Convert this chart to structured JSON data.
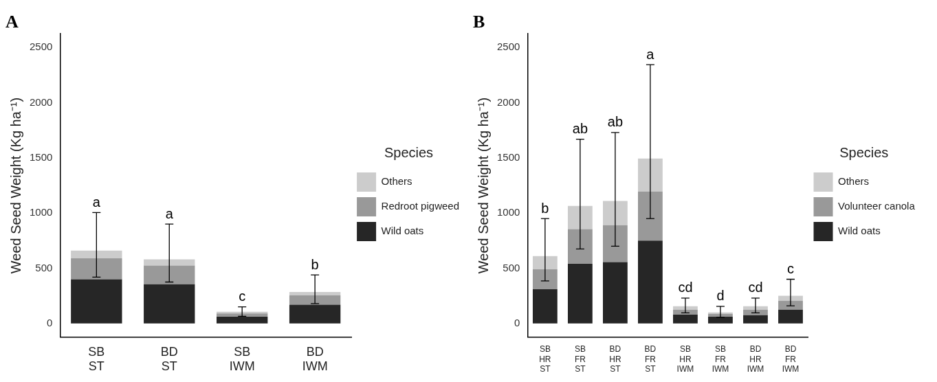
{
  "chart_data": [
    {
      "type": "bar",
      "title": "A",
      "ylabel": "Weed Seed Weight (Kg ha⁻¹)",
      "legend_title": "Species",
      "legend": "right",
      "stacked": true,
      "grid": false,
      "categories": [
        "SB ST",
        "BD ST",
        "SB IWM",
        "BD IWM"
      ],
      "ylim": [
        -125,
        2625
      ],
      "yticks": [
        0,
        500,
        1000,
        1500,
        2000,
        2500
      ],
      "series": [
        {
          "name": "Wild oats",
          "color": "#262626",
          "values": [
            400,
            355,
            60,
            170
          ]
        },
        {
          "name": "Redroot pigweed",
          "color": "#999999",
          "values": [
            190,
            170,
            30,
            85
          ]
        },
        {
          "name": "Others",
          "color": "#cccccc",
          "values": [
            70,
            55,
            15,
            30
          ],
          "errors": [
            [
              420,
              1005
            ],
            [
              375,
              900
            ],
            [
              65,
              150
            ],
            [
              180,
              440
            ]
          ]
        }
      ],
      "annotations": [
        {
          "text": "a",
          "x": "SB ST",
          "y": 1005
        },
        {
          "text": "a",
          "x": "BD ST",
          "y": 900
        },
        {
          "text": "c",
          "x": "SB IWM",
          "y": 150
        },
        {
          "text": "b",
          "x": "BD IWM",
          "y": 440
        }
      ]
    },
    {
      "type": "bar",
      "title": "B",
      "ylabel": "Weed Seed Weight (Kg ha⁻¹)",
      "legend_title": "Species",
      "legend": "right",
      "stacked": true,
      "grid": false,
      "categories": [
        "SB HR ST",
        "SB FR ST",
        "BD HR ST",
        "BD FR ST",
        "SB HR IWM",
        "SB FR IWM",
        "BD HR IWM",
        "BD FR IWM"
      ],
      "ylim": [
        -125,
        2625
      ],
      "yticks": [
        0,
        500,
        1000,
        1500,
        2000,
        2500
      ],
      "series": [
        {
          "name": "Wild oats",
          "color": "#262626",
          "values": [
            310,
            540,
            555,
            750,
            80,
            60,
            75,
            125
          ]
        },
        {
          "name": "Volunteer canola",
          "color": "#999999",
          "values": [
            180,
            315,
            335,
            445,
            45,
            25,
            50,
            80
          ]
        },
        {
          "name": "Others",
          "color": "#cccccc",
          "values": [
            120,
            210,
            220,
            300,
            30,
            15,
            30,
            45
          ],
          "errors": [
            [
              385,
              950
            ],
            [
              675,
              1670
            ],
            [
              700,
              1730
            ],
            [
              950,
              2345
            ],
            [
              95,
              230
            ],
            [
              55,
              155
            ],
            [
              95,
              230
            ],
            [
              160,
              400
            ]
          ]
        }
      ],
      "annotations": [
        {
          "text": "b",
          "x": "SB HR ST",
          "y": 950
        },
        {
          "text": "ab",
          "x": "SB FR ST",
          "y": 1670
        },
        {
          "text": "ab",
          "x": "BD HR ST",
          "y": 1730
        },
        {
          "text": "a",
          "x": "BD FR ST",
          "y": 2345
        },
        {
          "text": "cd",
          "x": "SB HR IWM",
          "y": 230
        },
        {
          "text": "d",
          "x": "SB FR IWM",
          "y": 155
        },
        {
          "text": "cd",
          "x": "BD HR IWM",
          "y": 230
        },
        {
          "text": "c",
          "x": "BD FR IWM",
          "y": 400
        }
      ]
    }
  ]
}
